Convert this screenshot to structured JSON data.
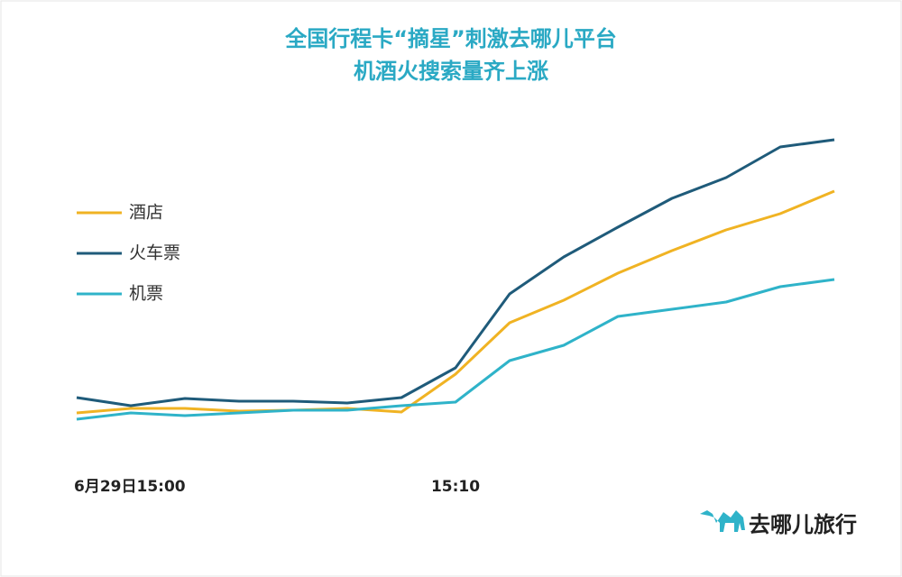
{
  "chart_data": {
    "type": "line",
    "title": [
      "全国行程卡“摘星”刺激去哪儿平台",
      "机酒火搜索量齐上涨"
    ],
    "categories": [
      "6月29日15:00",
      null,
      null,
      null,
      null,
      null,
      null,
      "15:10",
      null,
      null,
      null,
      null,
      null,
      null,
      null
    ],
    "series": [
      {
        "name": "酒店",
        "color": "#f0b323",
        "values": [
          42,
          47,
          47,
          44,
          45,
          47,
          43,
          85,
          142,
          167,
          197,
          222,
          245,
          263,
          288
        ]
      },
      {
        "name": "火车票",
        "color": "#1f5b7a",
        "values": [
          59,
          50,
          58,
          55,
          55,
          53,
          59,
          92,
          174,
          215,
          248,
          280,
          303,
          337,
          345
        ]
      },
      {
        "name": "机票",
        "color": "#2fb3c9",
        "values": [
          35,
          42,
          39,
          42,
          45,
          45,
          50,
          54,
          100,
          117,
          149,
          157,
          165,
          182,
          190
        ]
      }
    ],
    "brand": "去哪儿旅行"
  }
}
